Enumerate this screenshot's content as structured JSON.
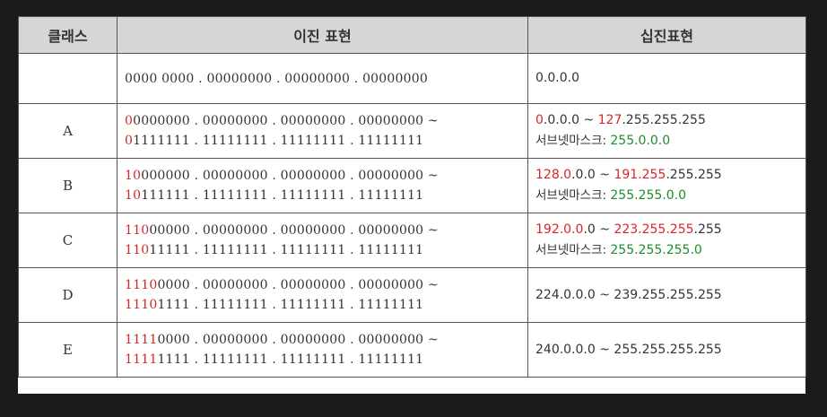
{
  "table": {
    "headers": [
      "클래스",
      "이진 표현",
      "십진표현"
    ],
    "rows": [
      {
        "class": "",
        "binary": [
          {
            "prefix": "",
            "rest": "0000 0000 . 00000000 . 00000000 . 00000000"
          }
        ],
        "decimal_line1": {
          "r1": "",
          "plain": "0.0.0.0",
          "r2": "",
          "tail": ""
        },
        "subnet": null
      },
      {
        "class": "A",
        "binary": [
          {
            "prefix": "0",
            "rest": "0000000 . 00000000 . 00000000 . 00000000 ~"
          },
          {
            "prefix": "0",
            "rest": "1111111 . 11111111 . 11111111 . 11111111"
          }
        ],
        "decimal_line1": {
          "r1": "0",
          "plain": ".0.0.0 ~ ",
          "r2": "127",
          "tail": ".255.255.255"
        },
        "subnet": {
          "label": "서브넷마스크: ",
          "value": "255.0.0.0"
        }
      },
      {
        "class": "B",
        "binary": [
          {
            "prefix": "10",
            "rest": "000000 . 00000000 . 00000000 . 00000000 ~"
          },
          {
            "prefix": "10",
            "rest": "111111 . 11111111 . 11111111 . 11111111"
          }
        ],
        "decimal_line1": {
          "r1": "128.0",
          "plain": ".0.0 ~ ",
          "r2": "191.255",
          "tail": ".255.255"
        },
        "subnet": {
          "label": "서브넷마스크: ",
          "value": "255.255.0.0"
        }
      },
      {
        "class": "C",
        "binary": [
          {
            "prefix": "110",
            "rest": "00000 . 00000000 . 00000000 . 00000000 ~"
          },
          {
            "prefix": "110",
            "rest": "11111 . 11111111 . 11111111 . 11111111"
          }
        ],
        "decimal_line1": {
          "r1": "192.0.0",
          "plain": ".0 ~ ",
          "r2": "223.255.255",
          "tail": ".255"
        },
        "subnet": {
          "label": "서브넷마스크: ",
          "value": "255.255.255.0"
        }
      },
      {
        "class": "D",
        "binary": [
          {
            "prefix": "1110",
            "rest": "0000 . 00000000 . 00000000 . 00000000 ~"
          },
          {
            "prefix": "1110",
            "rest": "1111 . 11111111 . 11111111 . 11111111"
          }
        ],
        "decimal_line1": {
          "r1": "",
          "plain": "224.0.0.0 ~ 239.255.255.255",
          "r2": "",
          "tail": ""
        },
        "subnet": null
      },
      {
        "class": "E",
        "binary": [
          {
            "prefix": "1111",
            "rest": "0000 . 00000000 . 00000000 . 00000000 ~"
          },
          {
            "prefix": "1111",
            "rest": "1111 . 11111111 . 11111111 . 11111111"
          }
        ],
        "decimal_line1": {
          "r1": "",
          "plain": "240.0.0.0 ~ 255.255.255.255",
          "r2": "",
          "tail": ""
        },
        "subnet": null
      }
    ]
  },
  "colors": {
    "highlight_red": "#d8262a",
    "subnet_green": "#1f8c2a",
    "header_bg": "#d6d6d6"
  }
}
